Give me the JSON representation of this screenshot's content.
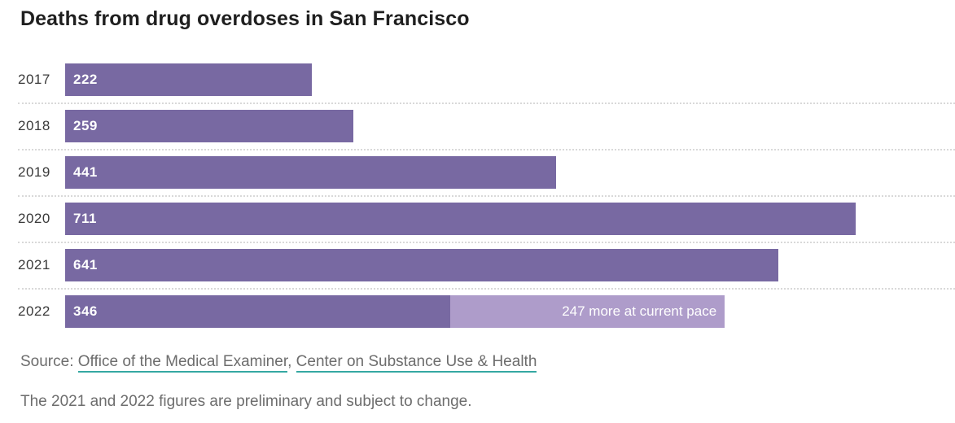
{
  "title": "Deaths from drug overdoses in San Francisco",
  "chart_data": {
    "type": "bar",
    "orientation": "horizontal",
    "title": "Deaths from drug overdoses in San Francisco",
    "categories": [
      "2017",
      "2018",
      "2019",
      "2020",
      "2021",
      "2022"
    ],
    "values": [
      222,
      259,
      441,
      711,
      641,
      346
    ],
    "annotations": [
      {
        "category": "2022",
        "value": 247,
        "label": "247 more at current pace",
        "type": "projection-segment"
      }
    ],
    "xlim": [
      0,
      800
    ],
    "xlabel": "",
    "ylabel": "",
    "legend": "none",
    "grid": "dotted-row-separators"
  },
  "colors": {
    "bar": "#7869a2",
    "bar_projection": "#ae9cca",
    "bar_label": "#ffffff",
    "title_text": "#1f1f1f",
    "axis_label": "#3a3a3a",
    "muted_text": "#6d6d6d",
    "link_underline": "#35a8a2",
    "separator": "#d9d9d9",
    "background": "#ffffff"
  },
  "source": {
    "prefix": "Source: ",
    "separator": ", ",
    "links": [
      {
        "text": "Office of the Medical Examiner"
      },
      {
        "text": "Center on Substance Use & Health"
      }
    ]
  },
  "footnote": "The 2021 and 2022 figures are preliminary and subject to change."
}
